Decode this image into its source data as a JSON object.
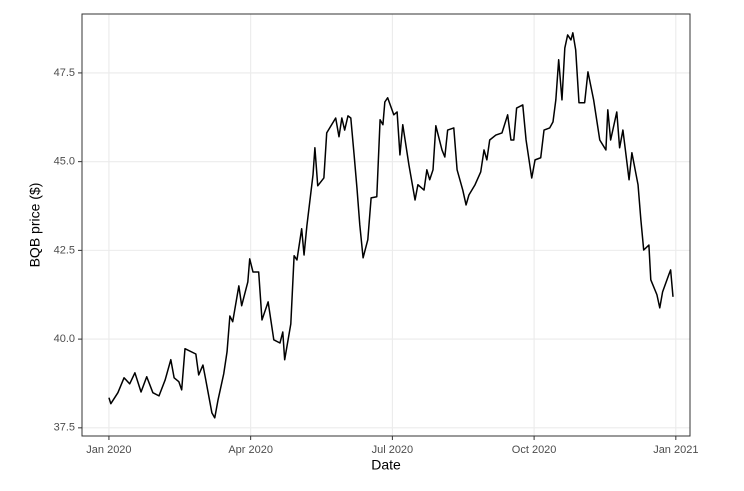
{
  "chart_data": {
    "type": "line",
    "x_label": "Date",
    "y_label": "BQB price ($)",
    "x": [
      0,
      0.04,
      0.19,
      0.32,
      0.44,
      0.55,
      0.68,
      0.8,
      0.93,
      1.06,
      1.19,
      1.31,
      1.38,
      1.48,
      1.54,
      1.61,
      1.84,
      1.9,
      1.99,
      2.05,
      2.18,
      2.24,
      2.31,
      2.43,
      2.5,
      2.56,
      2.62,
      2.75,
      2.81,
      2.94,
      2.98,
      3.05,
      3.17,
      3.24,
      3.37,
      3.49,
      3.62,
      3.68,
      3.72,
      3.85,
      3.92,
      3.98,
      4.08,
      4.13,
      4.19,
      4.32,
      4.36,
      4.42,
      4.55,
      4.61,
      4.8,
      4.87,
      4.93,
      4.99,
      5.06,
      5.12,
      5.19,
      5.25,
      5.31,
      5.38,
      5.48,
      5.55,
      5.67,
      5.74,
      5.8,
      5.84,
      5.9,
      6.03,
      6.1,
      6.16,
      6.22,
      6.35,
      6.48,
      6.54,
      6.67,
      6.73,
      6.79,
      6.86,
      6.92,
      7.05,
      7.11,
      7.17,
      7.3,
      7.37,
      7.49,
      7.56,
      7.62,
      7.75,
      7.87,
      7.94,
      8,
      8.06,
      8.19,
      8.32,
      8.44,
      8.51,
      8.57,
      8.63,
      8.76,
      8.83,
      8.95,
      9.02,
      9.14,
      9.21,
      9.33,
      9.4,
      9.46,
      9.52,
      9.59,
      9.65,
      9.71,
      9.78,
      9.82,
      9.88,
      9.95,
      10.07,
      10.14,
      10.26,
      10.39,
      10.52,
      10.56,
      10.62,
      10.75,
      10.81,
      10.88,
      11.01,
      11.07,
      11.2,
      11.26,
      11.32,
      11.43,
      11.47,
      11.6,
      11.66,
      11.72,
      11.85,
      11.89,
      11.94
    ],
    "series": [
      {
        "color": "#000000",
        "values": [
          38.35,
          38.18,
          38.49,
          38.91,
          38.74,
          39.05,
          38.51,
          38.94,
          38.49,
          38.4,
          38.85,
          39.42,
          38.91,
          38.8,
          38.57,
          39.73,
          39.58,
          38.99,
          39.27,
          38.85,
          37.92,
          37.78,
          38.29,
          39.02,
          39.64,
          40.65,
          40.49,
          41.5,
          40.94,
          41.61,
          42.26,
          41.89,
          41.89,
          40.54,
          41.05,
          39.98,
          39.89,
          40.2,
          39.42,
          40.43,
          42.35,
          42.23,
          43.11,
          42.37,
          43.19,
          44.63,
          45.39,
          44.32,
          44.54,
          45.81,
          46.23,
          45.7,
          46.23,
          45.89,
          46.29,
          46.23,
          45.19,
          44.26,
          43.22,
          42.29,
          42.8,
          43.98,
          44.01,
          46.18,
          46.04,
          46.68,
          46.8,
          46.32,
          46.4,
          45.19,
          46.04,
          44.91,
          43.92,
          44.35,
          44.2,
          44.77,
          44.49,
          44.77,
          46.01,
          45.33,
          45.13,
          45.89,
          45.95,
          44.77,
          44.2,
          43.78,
          44.06,
          44.35,
          44.71,
          45.33,
          45.05,
          45.61,
          45.75,
          45.81,
          46.32,
          45.61,
          45.61,
          46.51,
          46.6,
          45.61,
          44.54,
          45.05,
          45.11,
          45.89,
          45.95,
          46.12,
          46.74,
          47.87,
          46.74,
          48.2,
          48.57,
          48.43,
          48.63,
          48.15,
          46.66,
          46.66,
          47.53,
          46.74,
          45.61,
          45.33,
          46.46,
          45.61,
          46.4,
          45.39,
          45.89,
          44.49,
          45.25,
          44.35,
          43.36,
          42.51,
          42.65,
          41.67,
          41.25,
          40.88,
          41.33,
          41.81,
          41.95,
          41.19
        ]
      }
    ],
    "xlim": [
      -0.57,
      12.3
    ],
    "xticks": [
      {
        "value": 0,
        "label": "Jan 2020"
      },
      {
        "value": 3,
        "label": "Apr 2020"
      },
      {
        "value": 6,
        "label": "Jul 2020"
      },
      {
        "value": 9,
        "label": "Oct 2020"
      },
      {
        "value": 12,
        "label": "Jan 2021"
      }
    ],
    "ylim": [
      37.27,
      49.16
    ],
    "yticks": [
      37.5,
      {
        "value": 40,
        "label": "40.0"
      },
      42.5,
      {
        "value": 45,
        "label": "45.0"
      },
      47.5
    ],
    "grid": true
  }
}
